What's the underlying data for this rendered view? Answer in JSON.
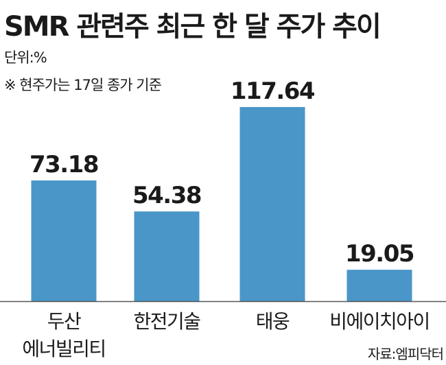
{
  "header": {
    "title": "SMR 관련주 최근 한 달 주가 추이",
    "unit": "단위:%",
    "note": "※ 현주가는 17일 종가 기준"
  },
  "footer": {
    "source": "자료:엠피닥터"
  },
  "chart_data": {
    "type": "bar",
    "categories": [
      [
        "두산",
        "에너빌리티"
      ],
      [
        "한전기술"
      ],
      [
        "태웅"
      ],
      [
        "비에이치아이"
      ]
    ],
    "values": [
      73.18,
      54.38,
      117.64,
      19.05
    ],
    "value_labels": [
      "73.18",
      "54.38",
      "117.64",
      "19.05"
    ],
    "ylim": [
      0,
      117.64
    ],
    "grid": false,
    "colors": {
      "bar": "#4a96c8",
      "baseline": "#555555"
    }
  }
}
